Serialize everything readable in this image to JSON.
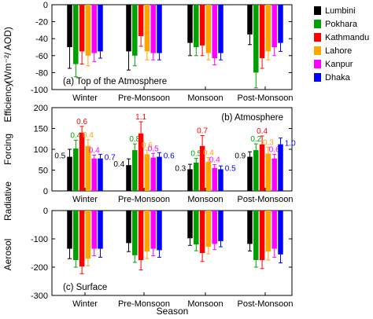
{
  "figure": {
    "ylabel_lines": [
      "Aerosol",
      "Radiative",
      "Forcing",
      "Efficiency",
      "(Wm⁻²/ AOD)"
    ],
    "xlabel": "Season",
    "legend": [
      {
        "name": "Lumbini",
        "color": "#000000"
      },
      {
        "name": "Pokhara",
        "color": "#00a000"
      },
      {
        "name": "Kathmandu",
        "color": "#ff0000"
      },
      {
        "name": "Lahore",
        "color": "#ffa500"
      },
      {
        "name": "Kanpur",
        "color": "#ff00ff"
      },
      {
        "name": "Dhaka",
        "color": "#0000ff"
      }
    ]
  },
  "chart_data": [
    {
      "type": "bar",
      "panel_label": "(a) Top of the Atmosphere",
      "categories": [
        "Winter",
        "Pre-Monsoon",
        "Monsoon",
        "Post-Monsoon"
      ],
      "ylim": [
        -100,
        0
      ],
      "yticks": [
        0,
        -20,
        -40,
        -60,
        -80,
        -100
      ],
      "series": [
        {
          "name": "Lumbini",
          "values": [
            -50,
            -55,
            -45,
            -35
          ],
          "errors": [
            25,
            22,
            15,
            12
          ]
        },
        {
          "name": "Pokhara",
          "values": [
            -70,
            -60,
            -50,
            -80
          ],
          "errors": [
            15,
            12,
            10,
            18
          ]
        },
        {
          "name": "Kathmandu",
          "values": [
            -55,
            -37,
            -48,
            -63
          ],
          "errors": [
            15,
            12,
            12,
            12
          ]
        },
        {
          "name": "Lahore",
          "values": [
            -60,
            -55,
            -57,
            -55
          ],
          "errors": [
            12,
            10,
            8,
            10
          ]
        },
        {
          "name": "Kanpur",
          "values": [
            -57,
            -57,
            -63,
            -50
          ],
          "errors": [
            10,
            8,
            8,
            10
          ]
        },
        {
          "name": "Dhaka",
          "values": [
            -55,
            -57,
            -57,
            -45
          ],
          "errors": [
            8,
            8,
            8,
            10
          ]
        }
      ]
    },
    {
      "type": "bar",
      "panel_label": "(b) Atmosphere",
      "categories": [
        "Winter",
        "Pre-Monsoon",
        "Monsoon",
        "Post-Monsoon"
      ],
      "ylim": [
        0,
        200
      ],
      "yticks": [
        0,
        50,
        100,
        150,
        200
      ],
      "series": [
        {
          "name": "Lumbini",
          "values": [
            82,
            62,
            52,
            82
          ],
          "errors": [
            18,
            15,
            12,
            12
          ],
          "labels": [
            "0.5",
            "0.4",
            "0.3",
            "0.9"
          ]
        },
        {
          "name": "Pokhara",
          "values": [
            102,
            98,
            68,
            98
          ],
          "errors": [
            20,
            15,
            10,
            15
          ],
          "labels": [
            "0.4",
            "0.8",
            "0.5",
            "0.2"
          ]
        },
        {
          "name": "Kathmandu",
          "values": [
            140,
            138,
            108,
            112
          ],
          "errors": [
            15,
            28,
            25,
            20
          ],
          "labels": [
            "0.6",
            "1.1",
            "0.7",
            "0.4"
          ]
        },
        {
          "name": "Lahore",
          "values": [
            108,
            88,
            70,
            90
          ],
          "errors": [
            15,
            10,
            10,
            15
          ],
          "labels": [
            "0.4",
            "0.6",
            "0.4",
            "0.3"
          ]
        },
        {
          "name": "Kanpur",
          "values": [
            78,
            80,
            55,
            78
          ],
          "errors": [
            8,
            10,
            8,
            10
          ],
          "labels": [
            "0.4",
            "0.5",
            "0.4",
            "0.6"
          ]
        },
        {
          "name": "Dhaka",
          "values": [
            78,
            82,
            52,
            112
          ],
          "errors": [
            10,
            10,
            8,
            15
          ],
          "labels": [
            "0.7",
            "0.6",
            "0.5",
            "1.0"
          ]
        }
      ]
    },
    {
      "type": "bar",
      "panel_label": "(c) Surface",
      "categories": [
        "Winter",
        "Pre-Monsoon",
        "Monsoon",
        "Post-Monsoon"
      ],
      "ylim": [
        -300,
        0
      ],
      "yticks": [
        0,
        -100,
        -200,
        -300
      ],
      "series": [
        {
          "name": "Lumbini",
          "values": [
            -135,
            -115,
            -98,
            -118
          ],
          "errors": [
            35,
            30,
            25,
            25
          ]
        },
        {
          "name": "Pokhara",
          "values": [
            -175,
            -158,
            -120,
            -175
          ],
          "errors": [
            25,
            25,
            22,
            25
          ]
        },
        {
          "name": "Kathmandu",
          "values": [
            -198,
            -175,
            -150,
            -175
          ],
          "errors": [
            25,
            35,
            30,
            30
          ]
        },
        {
          "name": "Lahore",
          "values": [
            -170,
            -145,
            -128,
            -145
          ],
          "errors": [
            25,
            25,
            25,
            30
          ]
        },
        {
          "name": "Kanpur",
          "values": [
            -135,
            -135,
            -118,
            -135
          ],
          "errors": [
            25,
            25,
            20,
            30
          ]
        },
        {
          "name": "Dhaka",
          "values": [
            -135,
            -140,
            -108,
            -155
          ],
          "errors": [
            30,
            25,
            20,
            30
          ]
        }
      ]
    }
  ]
}
